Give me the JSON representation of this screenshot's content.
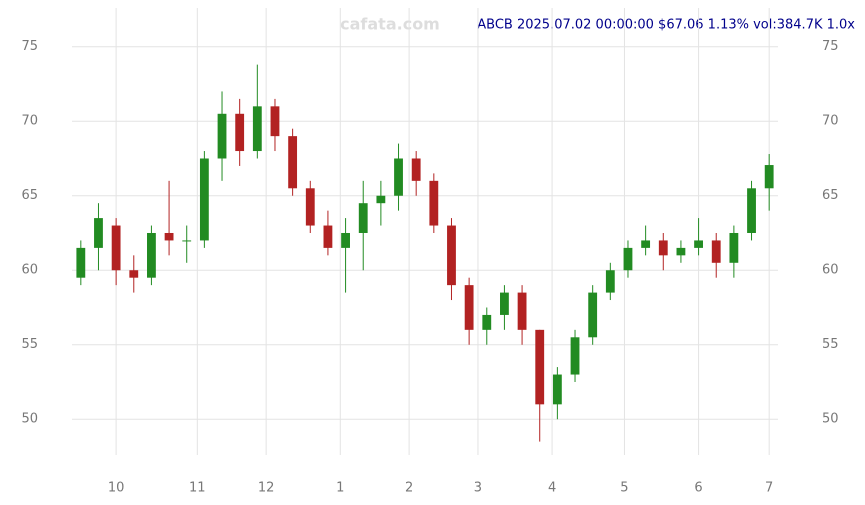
{
  "chart_data": {
    "type": "candlestick",
    "watermark": "cafata.com",
    "title": "ABCB 2025.07.02 00:00:00 $67.06 1.13% vol:384.7K 1.0x",
    "up_color": "#228b22",
    "down_color": "#b22222",
    "grid": true,
    "xlim": [
      -0.5,
      39.5
    ],
    "xticks": [
      {
        "value": 2,
        "label": "10"
      },
      {
        "value": 6.6,
        "label": "11"
      },
      {
        "value": 10.5,
        "label": "12"
      },
      {
        "value": 14.7,
        "label": "1"
      },
      {
        "value": 18.6,
        "label": "2"
      },
      {
        "value": 22.5,
        "label": "3"
      },
      {
        "value": 26.7,
        "label": "4"
      },
      {
        "value": 30.8,
        "label": "5"
      },
      {
        "value": 35,
        "label": "6"
      },
      {
        "value": 39,
        "label": "7"
      }
    ],
    "ylim": [
      47.6,
      77.6
    ],
    "yticks": [
      50,
      55,
      60,
      65,
      70,
      75
    ],
    "open": [
      59.5,
      61.5,
      63,
      60,
      59.5,
      62.5,
      62,
      62,
      67.5,
      70.5,
      68,
      71,
      69,
      65.5,
      63,
      61.5,
      62.5,
      64.5,
      65,
      67.5,
      66,
      63,
      59,
      56,
      57,
      58.5,
      56,
      51,
      53,
      55.5,
      58.5,
      60,
      61.5,
      62,
      61,
      61.5,
      62,
      60.5,
      62.5,
      65.5
    ],
    "high": [
      62,
      64.5,
      63.5,
      61,
      63,
      66,
      63,
      68,
      72,
      71.5,
      73.8,
      71.5,
      69.5,
      66,
      64,
      63.5,
      66,
      66,
      68.5,
      68,
      66.5,
      63.5,
      59.5,
      57.5,
      59,
      59,
      56,
      53.5,
      56,
      59,
      60.5,
      62,
      63,
      62.5,
      62,
      63.5,
      62.5,
      63,
      66,
      67.8
    ],
    "low": [
      59,
      60,
      59,
      58.5,
      59,
      61,
      60.5,
      61.5,
      66,
      67,
      67.5,
      68,
      65,
      62.5,
      61,
      58.5,
      60,
      63,
      64,
      65,
      62.5,
      58,
      55,
      55,
      56,
      55,
      48.5,
      50,
      52.5,
      55,
      58,
      59.5,
      61,
      60,
      60.5,
      61,
      59.5,
      59.5,
      62,
      64
    ],
    "close": [
      61.5,
      63.5,
      60,
      59.5,
      62.5,
      62,
      62,
      67.5,
      70.5,
      68,
      71,
      69,
      65.5,
      63,
      61.5,
      62.5,
      64.5,
      65,
      67.5,
      66,
      63,
      59,
      56,
      57,
      58.5,
      56,
      51,
      53,
      55.5,
      58.5,
      60,
      61.5,
      62,
      61,
      61.5,
      62,
      60.5,
      62.5,
      65.5,
      67.06
    ]
  }
}
